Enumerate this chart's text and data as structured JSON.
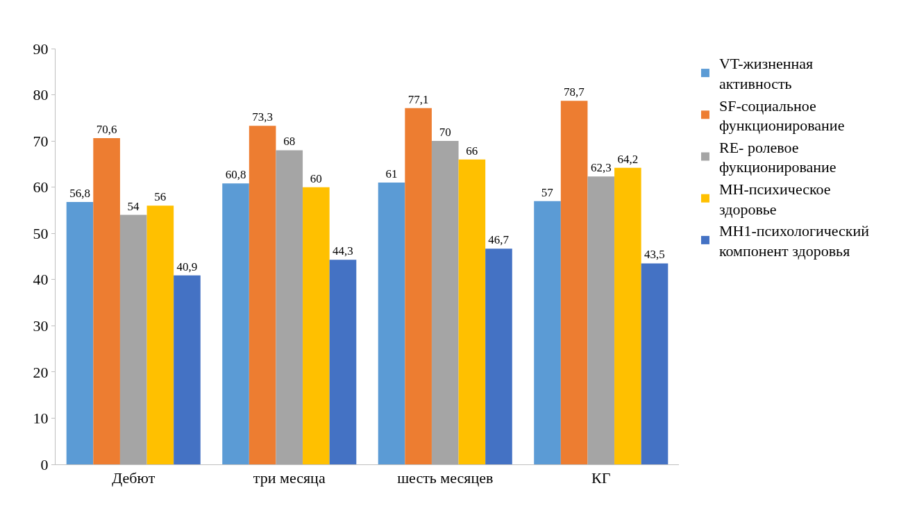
{
  "chart_data": {
    "type": "bar",
    "categories": [
      "Дебют",
      "три месяца",
      "шесть месяцев",
      "КГ"
    ],
    "series": [
      {
        "name": "VT-жизненная активность",
        "color": "#5b9bd5",
        "values": [
          56.8,
          60.8,
          61,
          57
        ],
        "value_labels": [
          "56,8",
          "60,8",
          "61",
          "57"
        ]
      },
      {
        "name": "SF-социальное функционирование",
        "color": "#ed7d31",
        "values": [
          70.6,
          73.3,
          77.1,
          78.7
        ],
        "value_labels": [
          "70,6",
          "73,3",
          "77,1",
          "78,7"
        ]
      },
      {
        "name": "RE- ролевое фукционирование",
        "color": "#a5a5a5",
        "values": [
          54,
          68,
          70,
          62.3
        ],
        "value_labels": [
          "54",
          "68",
          "70",
          "62,3"
        ]
      },
      {
        "name": "MH-психическое здоровье",
        "color": "#ffc000",
        "values": [
          56,
          60,
          66,
          64.2
        ],
        "value_labels": [
          "56",
          "60",
          "66",
          "64,2"
        ]
      },
      {
        "name": "MH1-психологический компонент здоровья",
        "color": "#4472c4",
        "values": [
          40.9,
          44.3,
          46.7,
          43.5
        ],
        "value_labels": [
          "40,9",
          "44,3",
          "46,7",
          "43,5"
        ]
      }
    ],
    "ylim": [
      0,
      90
    ],
    "yticks": [
      0,
      10,
      20,
      30,
      40,
      50,
      60,
      70,
      80,
      90
    ],
    "grid": false,
    "legend": "right"
  }
}
